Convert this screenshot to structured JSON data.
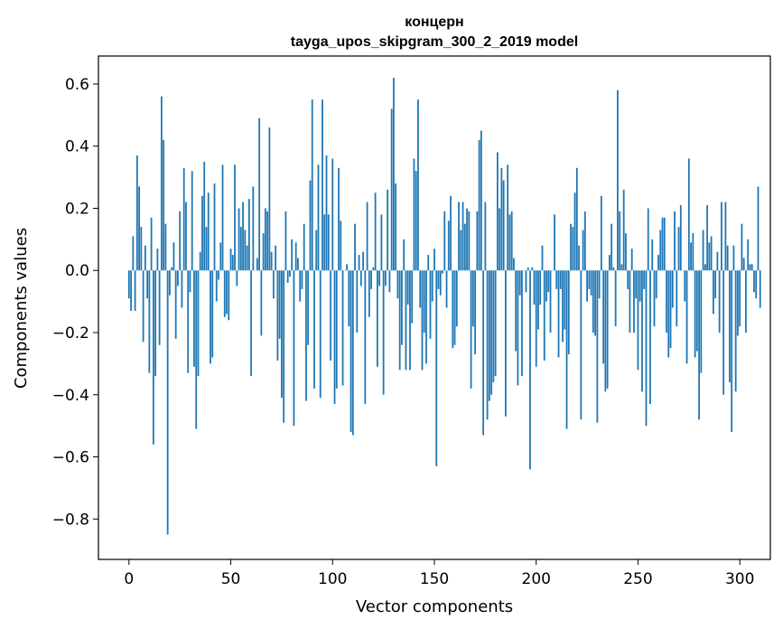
{
  "chart_data": {
    "type": "bar",
    "title_line1": "концерн",
    "title_line2": "tayga_upos_skipgram_300_2_2019 model",
    "xlabel": "Vector components",
    "ylabel": "Components values",
    "xlim": [
      -15,
      315
    ],
    "ylim": [
      -0.93,
      0.69
    ],
    "xticks": [
      0,
      50,
      100,
      150,
      200,
      250,
      300
    ],
    "xtick_labels": [
      "0",
      "50",
      "100",
      "150",
      "200",
      "250",
      "300"
    ],
    "yticks": [
      -0.8,
      -0.6,
      -0.4,
      -0.2,
      0.0,
      0.2,
      0.4,
      0.6
    ],
    "ytick_labels": [
      "−0.8",
      "−0.6",
      "−0.4",
      "−0.2",
      "0.0",
      "0.2",
      "0.4",
      "0.6"
    ],
    "bar_color": "#1f77b4",
    "values": [
      -0.09,
      -0.13,
      0.11,
      -0.13,
      0.37,
      0.27,
      0.14,
      -0.23,
      0.08,
      -0.09,
      -0.33,
      0.17,
      -0.56,
      -0.34,
      0.07,
      -0.24,
      0.56,
      0.42,
      0.15,
      -0.85,
      -0.08,
      0.01,
      0.09,
      -0.22,
      -0.05,
      0.19,
      -0.12,
      0.33,
      0.22,
      -0.33,
      -0.07,
      0.32,
      -0.31,
      -0.51,
      -0.34,
      0.06,
      0.24,
      0.35,
      0.14,
      0.25,
      -0.3,
      -0.28,
      0.28,
      -0.1,
      -0.03,
      0.09,
      0.34,
      -0.15,
      -0.14,
      -0.16,
      0.07,
      0.05,
      0.34,
      -0.05,
      0.2,
      0.14,
      0.22,
      0.13,
      0.08,
      0.23,
      -0.34,
      0.27,
      0.0,
      0.04,
      0.49,
      -0.21,
      0.12,
      0.2,
      0.19,
      0.46,
      0.06,
      -0.09,
      0.08,
      -0.29,
      -0.22,
      -0.41,
      -0.49,
      0.19,
      -0.04,
      -0.02,
      0.1,
      -0.5,
      0.09,
      0.04,
      -0.1,
      -0.06,
      0.15,
      -0.42,
      -0.24,
      0.29,
      0.55,
      -0.38,
      0.13,
      0.34,
      -0.41,
      0.55,
      0.18,
      0.37,
      0.18,
      -0.29,
      0.36,
      -0.43,
      -0.38,
      0.33,
      0.16,
      -0.37,
      0.0,
      0.02,
      -0.18,
      -0.52,
      -0.53,
      0.15,
      -0.2,
      0.05,
      -0.05,
      0.06,
      -0.43,
      0.22,
      -0.15,
      -0.06,
      0.01,
      0.25,
      -0.31,
      -0.05,
      0.18,
      -0.4,
      -0.05,
      0.26,
      -0.07,
      0.52,
      0.62,
      0.28,
      -0.09,
      -0.32,
      -0.24,
      0.1,
      -0.32,
      -0.11,
      -0.32,
      -0.17,
      0.36,
      0.32,
      0.55,
      -0.12,
      -0.32,
      -0.2,
      -0.3,
      0.05,
      -0.22,
      -0.1,
      0.07,
      -0.63,
      -0.06,
      -0.08,
      -0.01,
      0.19,
      -0.12,
      0.16,
      0.24,
      -0.25,
      -0.24,
      -0.18,
      0.22,
      0.13,
      0.22,
      0.15,
      0.2,
      0.19,
      -0.38,
      -0.18,
      -0.27,
      0.19,
      0.42,
      0.45,
      -0.53,
      0.22,
      -0.48,
      -0.42,
      -0.4,
      -0.36,
      -0.34,
      0.38,
      0.2,
      0.33,
      0.29,
      -0.47,
      0.34,
      0.18,
      0.19,
      0.04,
      -0.26,
      -0.37,
      -0.08,
      -0.34,
      0.0,
      -0.07,
      0.01,
      -0.64,
      0.01,
      -0.11,
      -0.31,
      -0.19,
      -0.11,
      0.08,
      -0.29,
      -0.1,
      -0.07,
      -0.2,
      0.0,
      0.18,
      -0.06,
      -0.28,
      -0.06,
      -0.23,
      -0.19,
      -0.51,
      -0.27,
      0.15,
      0.14,
      0.25,
      0.33,
      0.08,
      -0.48,
      0.13,
      0.19,
      -0.1,
      -0.06,
      -0.08,
      -0.2,
      -0.21,
      -0.49,
      -0.09,
      0.24,
      -0.3,
      -0.39,
      -0.38,
      0.05,
      0.15,
      0.01,
      -0.18,
      0.58,
      0.19,
      0.02,
      0.26,
      0.12,
      -0.06,
      -0.2,
      0.07,
      -0.2,
      -0.09,
      -0.32,
      -0.1,
      -0.39,
      -0.06,
      -0.5,
      0.2,
      -0.43,
      0.1,
      -0.18,
      -0.09,
      0.05,
      0.13,
      0.17,
      0.17,
      -0.2,
      -0.28,
      -0.25,
      -0.12,
      0.19,
      -0.18,
      0.14,
      0.21,
      0.0,
      -0.1,
      -0.3,
      0.36,
      0.09,
      0.12,
      -0.28,
      -0.26,
      -0.48,
      -0.33,
      0.13,
      0.02,
      0.21,
      0.09,
      0.11,
      -0.14,
      -0.09,
      0.06,
      -0.2,
      0.22,
      -0.4,
      0.22,
      0.08,
      -0.36,
      -0.52,
      0.08,
      -0.39,
      -0.21,
      -0.18,
      0.15,
      0.04,
      -0.2,
      0.1,
      0.02,
      0.02,
      -0.07,
      -0.09,
      0.27,
      -0.12
    ]
  }
}
